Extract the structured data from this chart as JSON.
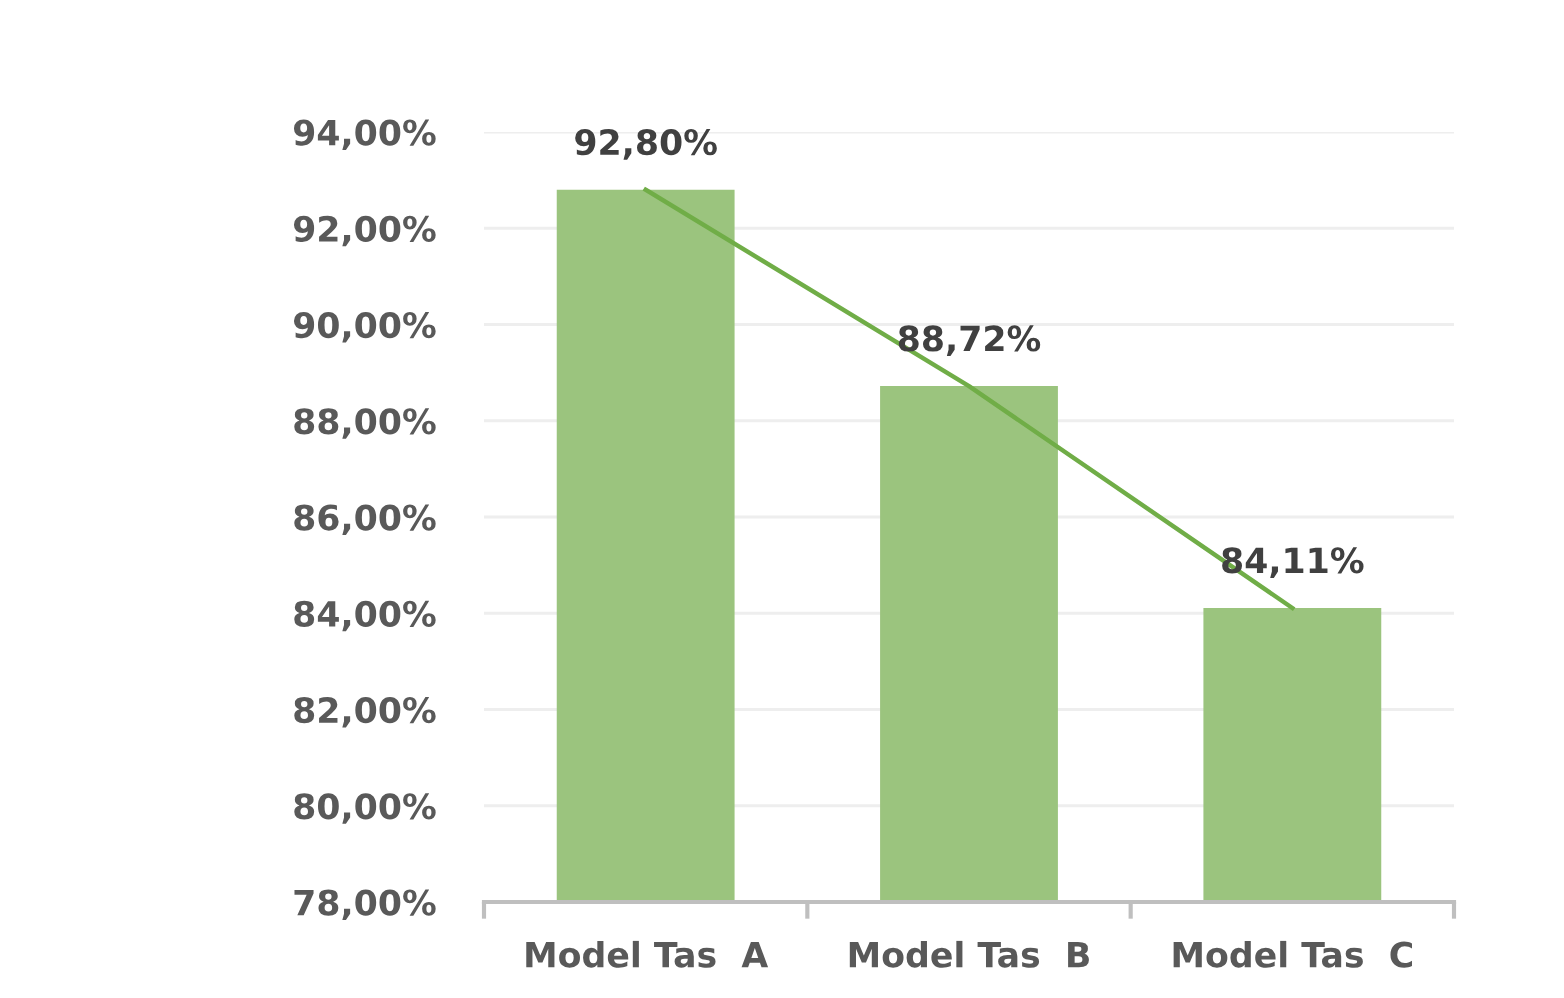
{
  "chart_data": {
    "type": "bar",
    "categories": [
      "Model Tas  A",
      "Model Tas  B",
      "Model Tas  C"
    ],
    "series": [
      {
        "color": "#9bc47e",
        "values": [
          92.8,
          88.72,
          84.11
        ],
        "value_labels": [
          "92,80%",
          "88,72%",
          "84,11%"
        ]
      },
      {
        "type": "line",
        "color": "#70ad47",
        "values": [
          92.8,
          88.72,
          84.11
        ]
      }
    ],
    "ylim": [
      78,
      94
    ],
    "yticks": [
      {
        "value": 78,
        "label": "78,00%"
      },
      {
        "value": 80,
        "label": "80,00%"
      },
      {
        "value": 82,
        "label": "82,00%"
      },
      {
        "value": 84,
        "label": "84,00%"
      },
      {
        "value": 86,
        "label": "86,00%"
      },
      {
        "value": 88,
        "label": "88,00%"
      },
      {
        "value": 90,
        "label": "90,00%"
      },
      {
        "value": 92,
        "label": "92,00%"
      },
      {
        "value": 94,
        "label": "94,00%"
      }
    ],
    "grid": "y"
  }
}
